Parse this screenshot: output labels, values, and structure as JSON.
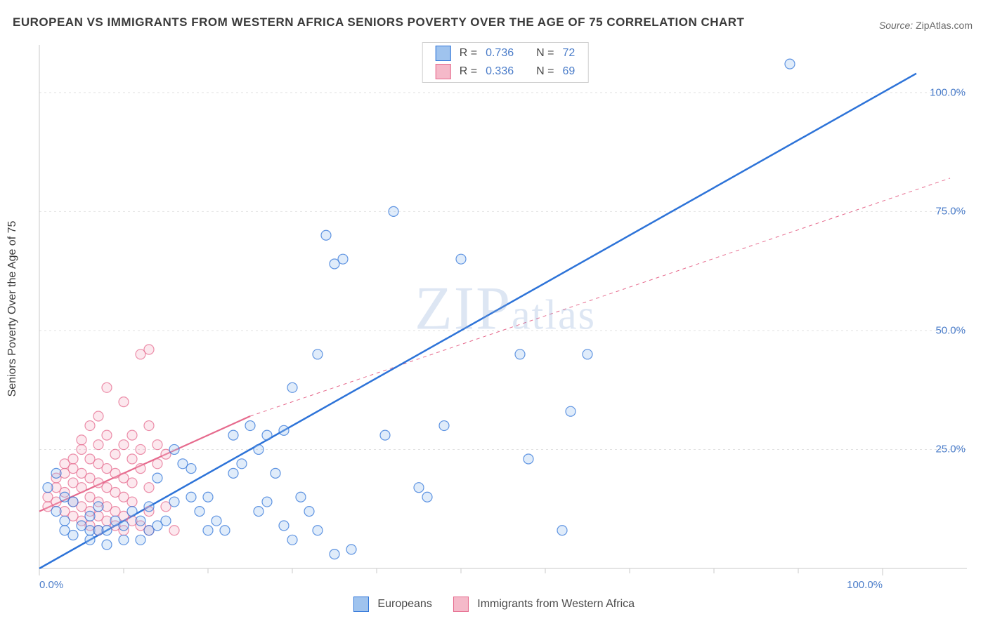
{
  "title": "EUROPEAN VS IMMIGRANTS FROM WESTERN AFRICA SENIORS POVERTY OVER THE AGE OF 75 CORRELATION CHART",
  "source_label": "Source:",
  "source_value": "ZipAtlas.com",
  "ylabel": "Seniors Poverty Over the Age of 75",
  "watermark": "ZIPatlas",
  "chart": {
    "type": "scatter",
    "background_color": "#ffffff",
    "grid_color": "#e2e2e2",
    "axis_color": "#c9c9c9",
    "tick_color": "#c9c9c9",
    "xlim": [
      0,
      110
    ],
    "ylim": [
      0,
      110
    ],
    "y_ticks": [
      {
        "v": 25,
        "label": "25.0%"
      },
      {
        "v": 50,
        "label": "50.0%"
      },
      {
        "v": 75,
        "label": "75.0%"
      },
      {
        "v": 100,
        "label": "100.0%"
      }
    ],
    "x_tick_major": [
      0,
      100
    ],
    "x_tick_labels": [
      {
        "v": 0,
        "label": "0.0%"
      },
      {
        "v": 100,
        "label": "100.0%"
      }
    ],
    "x_minor_ticks": [
      10,
      20,
      30,
      40,
      50,
      60,
      70,
      80,
      90
    ],
    "tick_label_color": "#4a7cc9",
    "tick_label_fontsize": 15,
    "marker_radius": 7,
    "marker_fill_opacity": 0.32,
    "marker_stroke_width": 1.2,
    "series": [
      {
        "name": "Europeans",
        "color": "#2d73d8",
        "fill": "#9fc3ee",
        "R": "0.736",
        "N": "72",
        "trend": {
          "x1": 0,
          "y1": 0,
          "x2": 104,
          "y2": 104,
          "width": 2.5,
          "dash": null
        },
        "points": [
          [
            2,
            20
          ],
          [
            1,
            17
          ],
          [
            3,
            15
          ],
          [
            4,
            14
          ],
          [
            2,
            12
          ],
          [
            3,
            10
          ],
          [
            5,
            9
          ],
          [
            6,
            8
          ],
          [
            7,
            8
          ],
          [
            8,
            8
          ],
          [
            6,
            11
          ],
          [
            7,
            13
          ],
          [
            9,
            10
          ],
          [
            10,
            9
          ],
          [
            11,
            12
          ],
          [
            12,
            10
          ],
          [
            13,
            8
          ],
          [
            14,
            9
          ],
          [
            15,
            10
          ],
          [
            13,
            13
          ],
          [
            14,
            19
          ],
          [
            16,
            25
          ],
          [
            17,
            22
          ],
          [
            18,
            21
          ],
          [
            19,
            12
          ],
          [
            20,
            15
          ],
          [
            21,
            10
          ],
          [
            20,
            8
          ],
          [
            22,
            8
          ],
          [
            23,
            28
          ],
          [
            24,
            22
          ],
          [
            25,
            30
          ],
          [
            26,
            12
          ],
          [
            27,
            14
          ],
          [
            23,
            20
          ],
          [
            26,
            25
          ],
          [
            28,
            20
          ],
          [
            29,
            29
          ],
          [
            30,
            38
          ],
          [
            31,
            15
          ],
          [
            32,
            12
          ],
          [
            33,
            45
          ],
          [
            34,
            70
          ],
          [
            35,
            64
          ],
          [
            36,
            65
          ],
          [
            33,
            8
          ],
          [
            35,
            3
          ],
          [
            37,
            4
          ],
          [
            30,
            6
          ],
          [
            29,
            9
          ],
          [
            41,
            28
          ],
          [
            42,
            75
          ],
          [
            45,
            17
          ],
          [
            46,
            15
          ],
          [
            48,
            30
          ],
          [
            50,
            65
          ],
          [
            57,
            45
          ],
          [
            58,
            23
          ],
          [
            60,
            106
          ],
          [
            62,
            8
          ],
          [
            63,
            33
          ],
          [
            65,
            45
          ],
          [
            89,
            106
          ],
          [
            27,
            28
          ],
          [
            18,
            15
          ],
          [
            16,
            14
          ],
          [
            10,
            6
          ],
          [
            12,
            6
          ],
          [
            8,
            5
          ],
          [
            6,
            6
          ],
          [
            4,
            7
          ],
          [
            3,
            8
          ]
        ]
      },
      {
        "name": "Immigrants from Western Africa",
        "color": "#e66a8d",
        "fill": "#f5b9c9",
        "R": "0.336",
        "N": "69",
        "trend_solid": {
          "x1": 0,
          "y1": 12,
          "x2": 25,
          "y2": 32,
          "width": 2.2,
          "dash": null
        },
        "trend_dash": {
          "x1": 25,
          "y1": 32,
          "x2": 108,
          "y2": 82,
          "width": 1.0,
          "dash": "5,5"
        },
        "points": [
          [
            1,
            13
          ],
          [
            1,
            15
          ],
          [
            2,
            14
          ],
          [
            2,
            17
          ],
          [
            2,
            19
          ],
          [
            3,
            12
          ],
          [
            3,
            16
          ],
          [
            3,
            20
          ],
          [
            3,
            22
          ],
          [
            4,
            11
          ],
          [
            4,
            14
          ],
          [
            4,
            18
          ],
          [
            4,
            21
          ],
          [
            4,
            23
          ],
          [
            5,
            10
          ],
          [
            5,
            13
          ],
          [
            5,
            17
          ],
          [
            5,
            20
          ],
          [
            5,
            25
          ],
          [
            5,
            27
          ],
          [
            6,
            9
          ],
          [
            6,
            12
          ],
          [
            6,
            15
          ],
          [
            6,
            19
          ],
          [
            6,
            23
          ],
          [
            6,
            30
          ],
          [
            7,
            8
          ],
          [
            7,
            11
          ],
          [
            7,
            14
          ],
          [
            7,
            18
          ],
          [
            7,
            22
          ],
          [
            7,
            26
          ],
          [
            7,
            32
          ],
          [
            8,
            10
          ],
          [
            8,
            13
          ],
          [
            8,
            17
          ],
          [
            8,
            21
          ],
          [
            8,
            28
          ],
          [
            8,
            38
          ],
          [
            9,
            9
          ],
          [
            9,
            12
          ],
          [
            9,
            16
          ],
          [
            9,
            20
          ],
          [
            9,
            24
          ],
          [
            10,
            8
          ],
          [
            10,
            11
          ],
          [
            10,
            15
          ],
          [
            10,
            19
          ],
          [
            10,
            26
          ],
          [
            10,
            35
          ],
          [
            11,
            10
          ],
          [
            11,
            14
          ],
          [
            11,
            18
          ],
          [
            11,
            23
          ],
          [
            11,
            28
          ],
          [
            12,
            9
          ],
          [
            12,
            21
          ],
          [
            12,
            25
          ],
          [
            12,
            45
          ],
          [
            13,
            8
          ],
          [
            13,
            12
          ],
          [
            13,
            17
          ],
          [
            13,
            30
          ],
          [
            13,
            46
          ],
          [
            14,
            22
          ],
          [
            14,
            26
          ],
          [
            15,
            13
          ],
          [
            15,
            24
          ],
          [
            16,
            8
          ]
        ]
      }
    ]
  },
  "legend_top": {
    "border_color": "#cfcfcf",
    "R_prefix": "R =",
    "N_prefix": "N ="
  },
  "legend_bottom": {
    "items": [
      {
        "label": "Europeans",
        "fill": "#9fc3ee",
        "border": "#2d73d8"
      },
      {
        "label": "Immigrants from Western Africa",
        "fill": "#f5b9c9",
        "border": "#e66a8d"
      }
    ]
  }
}
